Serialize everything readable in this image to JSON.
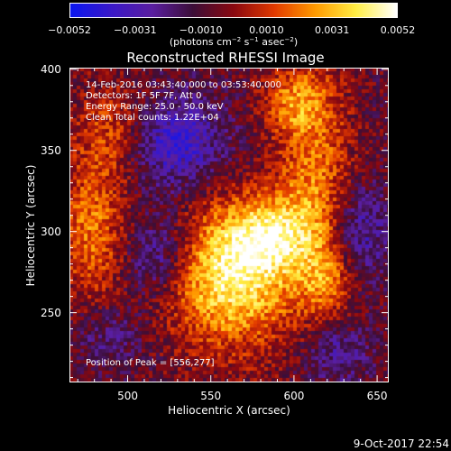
{
  "colorbar": {
    "tick_labels": [
      "−0.0052",
      "−0.0031",
      "−0.0010",
      "0.0010",
      "0.0031",
      "0.0052"
    ],
    "unit_parts": [
      "(photons cm",
      "−2",
      " s",
      "−1",
      " asec",
      "−2",
      ")"
    ],
    "colors": [
      "#0b16f0",
      "#3a18c8",
      "#5a1ea0",
      "#3c0e38",
      "#8a0810",
      "#e23a00",
      "#ff9a00",
      "#ffee44",
      "#ffffff"
    ]
  },
  "chart_data": {
    "type": "heatmap",
    "title": "Reconstructed RHESSI Image",
    "xlabel": "Heliocentric X (arcsec)",
    "ylabel": "Heliocentric Y (arcsec)",
    "xlim": [
      465,
      657
    ],
    "ylim": [
      207,
      401
    ],
    "xticks": [
      500,
      550,
      600,
      650
    ],
    "yticks": [
      250,
      300,
      350,
      400
    ],
    "value_range": [
      -0.0052,
      0.0052
    ],
    "info_lines": [
      "14-Feb-2016 03:43:40.000 to 03:53:40.000",
      "Detectors: 1F 5F 7F, Att 0",
      "Energy Range: 25.0 - 50.0 keV",
      "Clean     Total counts: 1.22E+04"
    ],
    "peak_text": "Position of Peak = [556,277]",
    "peak": [
      556,
      277
    ],
    "sources": [
      {
        "x": 562,
        "y": 272,
        "sx": 26,
        "sy": 30,
        "amp": 1.0
      },
      {
        "x": 585,
        "y": 298,
        "sx": 18,
        "sy": 16,
        "amp": 0.65
      },
      {
        "x": 612,
        "y": 330,
        "sx": 16,
        "sy": 50,
        "amp": 0.55
      },
      {
        "x": 478,
        "y": 300,
        "sx": 14,
        "sy": 28,
        "amp": 0.55
      },
      {
        "x": 493,
        "y": 360,
        "sx": 18,
        "sy": 22,
        "amp": 0.5
      },
      {
        "x": 620,
        "y": 270,
        "sx": 10,
        "sy": 14,
        "amp": 0.4
      },
      {
        "x": 600,
        "y": 380,
        "sx": 14,
        "sy": 14,
        "amp": 0.45
      },
      {
        "x": 525,
        "y": 355,
        "sx": 22,
        "sy": 20,
        "amp": -0.65
      },
      {
        "x": 520,
        "y": 285,
        "sx": 14,
        "sy": 18,
        "amp": -0.45
      },
      {
        "x": 640,
        "y": 300,
        "sx": 12,
        "sy": 20,
        "amp": -0.45
      },
      {
        "x": 625,
        "y": 225,
        "sx": 14,
        "sy": 14,
        "amp": -0.35
      },
      {
        "x": 490,
        "y": 235,
        "sx": 14,
        "sy": 12,
        "amp": -0.25
      }
    ]
  },
  "timestamp": "9-Oct-2017 22:54"
}
